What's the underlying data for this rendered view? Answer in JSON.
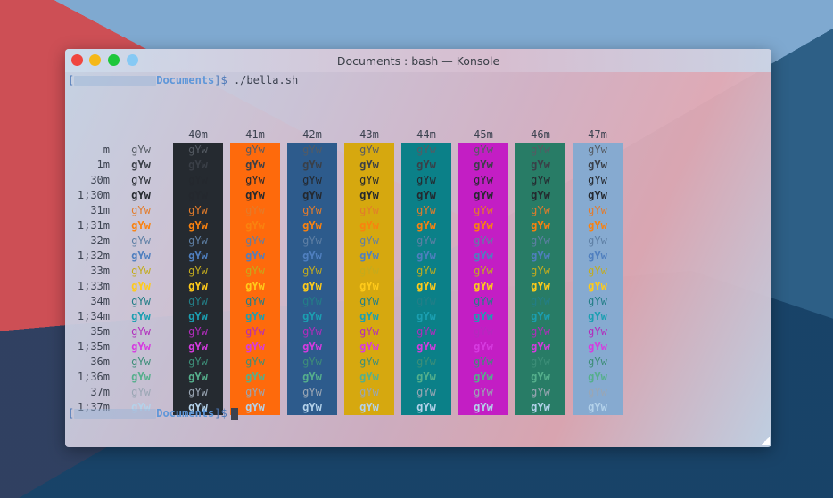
{
  "window": {
    "title": "Documents : bash — Konsole"
  },
  "prompt1": {
    "open": "[",
    "dir": "Documents",
    "close": "]$",
    "command": " ./bella.sh"
  },
  "prompt2": {
    "open": "[",
    "dir": "Documents",
    "close": "]$"
  },
  "sample": "gYw",
  "bg_codes": [
    "40m",
    "41m",
    "42m",
    "43m",
    "44m",
    "45m",
    "46m",
    "47m"
  ],
  "bg_colors": [
    "#252a30",
    "#fe6a0c",
    "#2d5b8c",
    "#d6a80f",
    "#0b8088",
    "#c31ec4",
    "#287c66",
    "#86aad0"
  ],
  "fg_codes": [
    "m",
    "1m",
    "30m",
    "1;30m",
    "31m",
    "1;31m",
    "32m",
    "1;32m",
    "33m",
    "1;33m",
    "34m",
    "1;34m",
    "35m",
    "1;35m",
    "36m",
    "1;36m",
    "37m",
    "1;37m"
  ],
  "fg_colors": [
    "#555b63",
    "#3a3f47",
    "#24282e",
    "#24282e",
    "#e27c2b",
    "#f9820f",
    "#5e7fa4",
    "#4f7fbf",
    "#c3ab1e",
    "#ffca1a",
    "#237e87",
    "#1b9fb1",
    "#b22cbd",
    "#d63be0",
    "#3d8e78",
    "#55af8c",
    "#9aa6b4",
    "#b4d2ea"
  ],
  "fg_bold": [
    false,
    true,
    false,
    true,
    false,
    true,
    false,
    true,
    false,
    true,
    false,
    true,
    false,
    true,
    false,
    true,
    false,
    true
  ]
}
